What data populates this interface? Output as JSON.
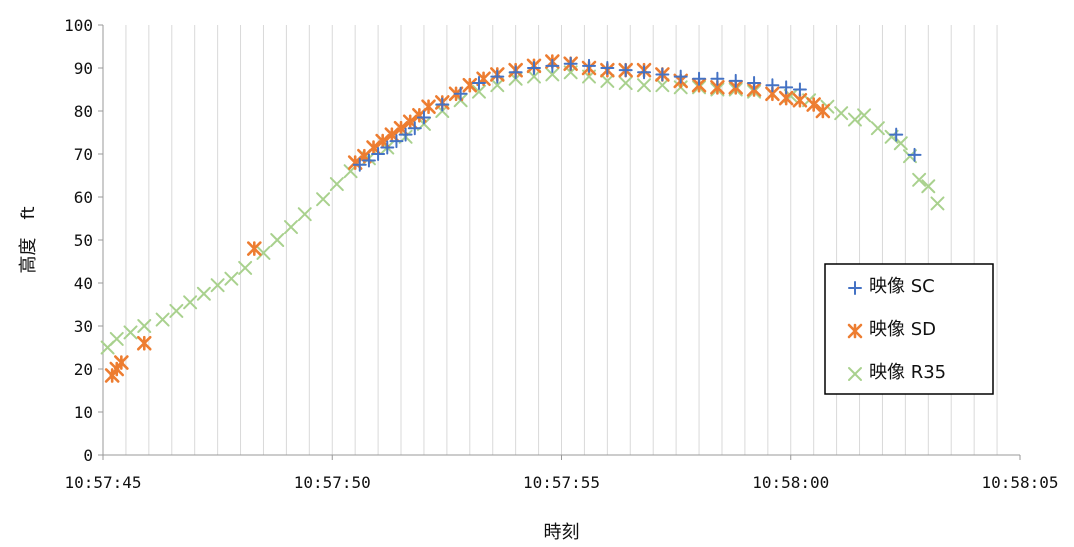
{
  "chart_data": {
    "type": "scatter",
    "title": "",
    "xlabel": "時刻",
    "ylabel": "高度　ft",
    "xlim": [
      "10:57:45",
      "10:58:05"
    ],
    "ylim": [
      0,
      100
    ],
    "x_ticks": [
      "10:57:45",
      "10:57:50",
      "10:57:55",
      "10:58:00",
      "10:58:05"
    ],
    "y_ticks": [
      0,
      10,
      20,
      30,
      40,
      50,
      60,
      70,
      80,
      90,
      100
    ],
    "grid": "vertical gridlines every 0.5 s",
    "legend": {
      "placement": "right",
      "entries": [
        "映像 SC",
        "映像 SD",
        "映像 R35"
      ]
    },
    "colors": {
      "SC": "#4472C4",
      "SD": "#ED7D31",
      "R35": "#A9D18E"
    },
    "series": [
      {
        "name": "映像 SC",
        "marker": "plus",
        "color": "#4472C4",
        "points": [
          [
            "10:57:50.6",
            67.5
          ],
          [
            "10:57:50.8",
            68.5
          ],
          [
            "10:57:51.0",
            70.0
          ],
          [
            "10:57:51.2",
            71.5
          ],
          [
            "10:57:51.4",
            73.0
          ],
          [
            "10:57:51.6",
            74.5
          ],
          [
            "10:57:51.8",
            76.0
          ],
          [
            "10:57:52.0",
            78.5
          ],
          [
            "10:57:52.4",
            81.5
          ],
          [
            "10:57:52.8",
            84.0
          ],
          [
            "10:57:53.2",
            86.5
          ],
          [
            "10:57:53.6",
            88.0
          ],
          [
            "10:57:54.0",
            89.0
          ],
          [
            "10:57:54.4",
            90.0
          ],
          [
            "10:57:54.8",
            90.5
          ],
          [
            "10:57:55.2",
            91.0
          ],
          [
            "10:57:55.6",
            90.5
          ],
          [
            "10:57:56.0",
            90.0
          ],
          [
            "10:57:56.4",
            89.5
          ],
          [
            "10:57:56.8",
            89.0
          ],
          [
            "10:57:57.2",
            88.5
          ],
          [
            "10:57:57.6",
            88.0
          ],
          [
            "10:57:58.0",
            87.5
          ],
          [
            "10:57:58.4",
            87.5
          ],
          [
            "10:57:58.8",
            87.0
          ],
          [
            "10:57:59.2",
            86.5
          ],
          [
            "10:57:59.6",
            86.0
          ],
          [
            "10:57:59.9",
            85.5
          ],
          [
            "10:58:00.2",
            85.0
          ],
          [
            "10:58:02.3",
            74.5
          ],
          [
            "10:58:02.7",
            69.8
          ]
        ]
      },
      {
        "name": "映像 SD",
        "marker": "star",
        "color": "#ED7D31",
        "points": [
          [
            "10:57:45.2",
            18.5
          ],
          [
            "10:57:45.3",
            20.0
          ],
          [
            "10:57:45.4",
            21.5
          ],
          [
            "10:57:45.9",
            26.0
          ],
          [
            "10:57:48.3",
            48.0
          ],
          [
            "10:57:50.5",
            68.0
          ],
          [
            "10:57:50.7",
            69.5
          ],
          [
            "10:57:50.9",
            71.5
          ],
          [
            "10:57:51.1",
            73.0
          ],
          [
            "10:57:51.3",
            74.5
          ],
          [
            "10:57:51.5",
            76.0
          ],
          [
            "10:57:51.7",
            77.5
          ],
          [
            "10:57:51.9",
            79.0
          ],
          [
            "10:57:52.1",
            81.0
          ],
          [
            "10:57:52.4",
            82.0
          ],
          [
            "10:57:52.7",
            84.0
          ],
          [
            "10:57:53.0",
            86.0
          ],
          [
            "10:57:53.3",
            87.5
          ],
          [
            "10:57:53.6",
            88.5
          ],
          [
            "10:57:54.0",
            89.5
          ],
          [
            "10:57:54.4",
            90.5
          ],
          [
            "10:57:54.8",
            91.5
          ],
          [
            "10:57:55.2",
            91.0
          ],
          [
            "10:57:55.6",
            90.0
          ],
          [
            "10:57:56.0",
            89.5
          ],
          [
            "10:57:56.4",
            89.5
          ],
          [
            "10:57:56.8",
            89.5
          ],
          [
            "10:57:57.2",
            88.5
          ],
          [
            "10:57:57.6",
            87.0
          ],
          [
            "10:57:58.0",
            86.0
          ],
          [
            "10:57:58.4",
            85.5
          ],
          [
            "10:57:58.8",
            85.5
          ],
          [
            "10:57:59.2",
            85.0
          ],
          [
            "10:57:59.6",
            84.0
          ],
          [
            "10:57:59.9",
            83.0
          ],
          [
            "10:58:00.2",
            82.5
          ],
          [
            "10:58:00.5",
            81.5
          ],
          [
            "10:58:00.7",
            80.0
          ]
        ]
      },
      {
        "name": "映像 R35",
        "marker": "x",
        "color": "#A9D18E",
        "points": [
          [
            "10:57:45.1",
            25.0
          ],
          [
            "10:57:45.3",
            27.0
          ],
          [
            "10:57:45.6",
            28.5
          ],
          [
            "10:57:45.9",
            30.0
          ],
          [
            "10:57:46.3",
            31.5
          ],
          [
            "10:57:46.6",
            33.5
          ],
          [
            "10:57:46.9",
            35.5
          ],
          [
            "10:57:47.2",
            37.5
          ],
          [
            "10:57:47.5",
            39.5
          ],
          [
            "10:57:47.8",
            41.0
          ],
          [
            "10:57:48.1",
            43.5
          ],
          [
            "10:57:48.5",
            47.0
          ],
          [
            "10:57:48.8",
            50.0
          ],
          [
            "10:57:49.1",
            53.0
          ],
          [
            "10:57:49.4",
            56.0
          ],
          [
            "10:57:49.8",
            59.5
          ],
          [
            "10:57:50.1",
            63.0
          ],
          [
            "10:57:50.4",
            66.0
          ],
          [
            "10:57:50.8",
            69.0
          ],
          [
            "10:57:51.2",
            71.5
          ],
          [
            "10:57:51.6",
            74.0
          ],
          [
            "10:57:52.0",
            77.0
          ],
          [
            "10:57:52.4",
            80.0
          ],
          [
            "10:57:52.8",
            82.5
          ],
          [
            "10:57:53.2",
            84.5
          ],
          [
            "10:57:53.6",
            86.0
          ],
          [
            "10:57:54.0",
            87.5
          ],
          [
            "10:57:54.4",
            88.0
          ],
          [
            "10:57:54.8",
            88.5
          ],
          [
            "10:57:55.2",
            89.0
          ],
          [
            "10:57:55.6",
            88.0
          ],
          [
            "10:57:56.0",
            87.0
          ],
          [
            "10:57:56.4",
            86.5
          ],
          [
            "10:57:56.8",
            86.0
          ],
          [
            "10:57:57.2",
            86.0
          ],
          [
            "10:57:57.6",
            85.5
          ],
          [
            "10:57:58.0",
            85.5
          ],
          [
            "10:57:58.4",
            85.0
          ],
          [
            "10:57:58.8",
            85.0
          ],
          [
            "10:57:59.2",
            84.5
          ],
          [
            "10:57:59.6",
            84.0
          ],
          [
            "10:58:00.0",
            83.5
          ],
          [
            "10:58:00.4",
            82.5
          ],
          [
            "10:58:00.8",
            81.0
          ],
          [
            "10:58:01.1",
            79.5
          ],
          [
            "10:58:01.4",
            78.0
          ],
          [
            "10:58:01.6",
            79.0
          ],
          [
            "10:58:01.9",
            76.0
          ],
          [
            "10:58:02.2",
            74.0
          ],
          [
            "10:58:02.4",
            72.5
          ],
          [
            "10:58:02.6",
            69.5
          ],
          [
            "10:58:02.8",
            64.0
          ],
          [
            "10:58:03.0",
            62.5
          ],
          [
            "10:58:03.2",
            58.5
          ]
        ]
      }
    ]
  }
}
